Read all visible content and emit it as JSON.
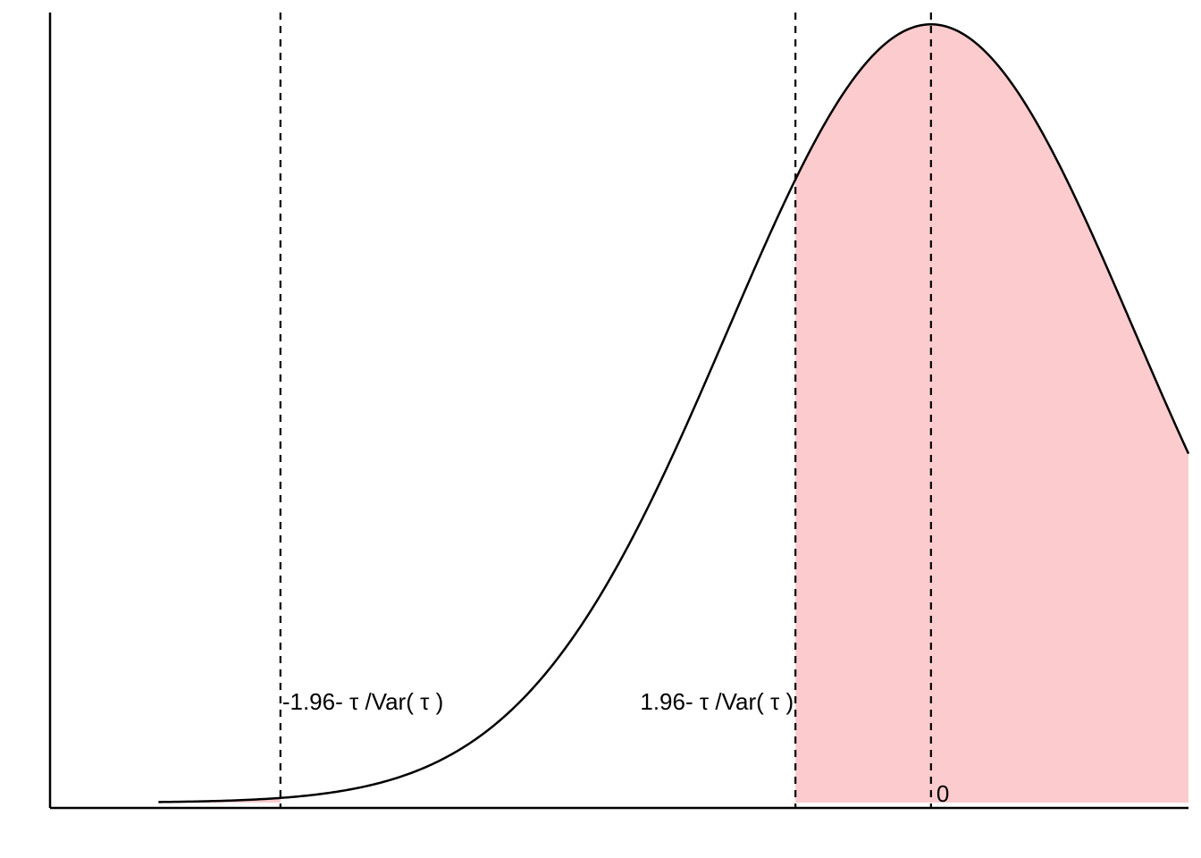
{
  "chart_data": {
    "type": "area",
    "title": "",
    "xlabel": "",
    "ylabel": "",
    "distribution": {
      "name": "normal",
      "mean": 0,
      "sd": 1.5
    },
    "xlim": [
      -6.5,
      1.9
    ],
    "ylim": [
      0,
      0.27
    ],
    "curve_range": [
      -5.7,
      1.9
    ],
    "grid": false,
    "legend": "none",
    "shaded_regions": [
      {
        "from": -5.7,
        "to": -4.8
      },
      {
        "from": -1.0,
        "to": 1.9
      }
    ],
    "reference_lines": [
      {
        "x": -4.8,
        "label": "-1.96- τ /Var( τ )",
        "label_side": "right"
      },
      {
        "x": -1.0,
        "label": "1.96- τ /Var( τ )",
        "label_side": "left"
      },
      {
        "x": 0.0,
        "label": "0",
        "label_side": "right-bottom"
      }
    ],
    "colors": {
      "shade": "#fccbcd",
      "line": "#000000",
      "background": "#ffffff"
    }
  }
}
